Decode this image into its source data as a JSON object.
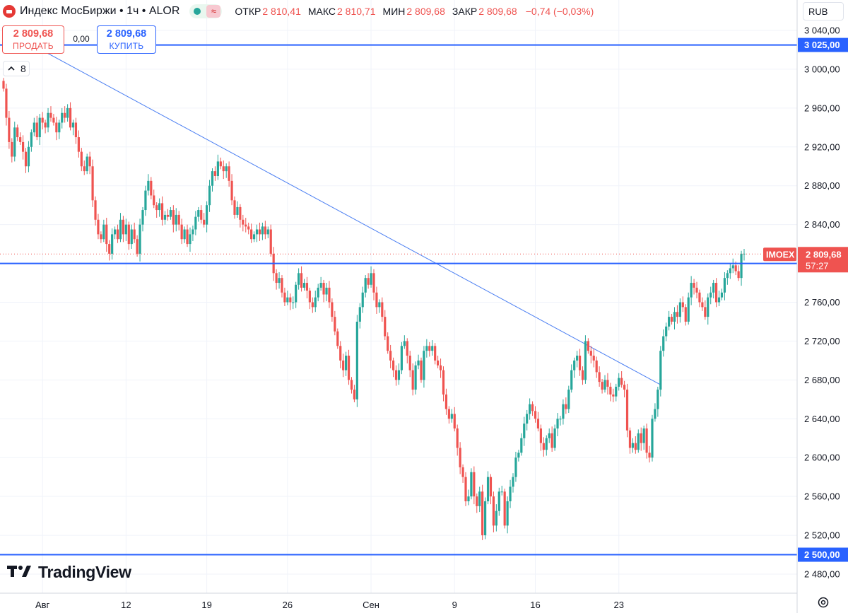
{
  "header": {
    "symbol_name": "Индекс МосБиржи",
    "sep1": "•",
    "interval": "1ч",
    "sep2": "•",
    "broker": "ALOR",
    "wave_glyph": "≈",
    "ohlc": [
      {
        "key": "ОТКР",
        "value": "2 810,41"
      },
      {
        "key": "МАКС",
        "value": "2 810,71"
      },
      {
        "key": "МИН",
        "value": "2 809,68"
      },
      {
        "key": "ЗАКР",
        "value": "2 809,68"
      }
    ],
    "change": "−0,74 (−0,03%)"
  },
  "trade": {
    "sell_price": "2 809,68",
    "sell_label": "ПРОДАТЬ",
    "spread": "0,00",
    "buy_price": "2 809,68",
    "buy_label": "КУПИТЬ"
  },
  "indicators_collapsed": {
    "count": "8"
  },
  "currency": "RUB",
  "logo_text": "TradingView",
  "colors": {
    "up": "#26a69a",
    "down": "#ef5350",
    "level": "#2962ff",
    "trend": "#4a7ef2"
  },
  "chart_data": {
    "type": "candlestick",
    "symbol": "IMOEX",
    "timeframe": "1h",
    "ylim": [
      2460,
      3060
    ],
    "y_ticks": [
      "3 040,00",
      "3 000,00",
      "2 960,00",
      "2 920,00",
      "2 880,00",
      "2 840,00",
      "2 760,00",
      "2 720,00",
      "2 680,00",
      "2 640,00",
      "2 600,00",
      "2 560,00",
      "2 520,00",
      "2 480,00"
    ],
    "y_tick_values": [
      3040,
      3000,
      2960,
      2920,
      2880,
      2840,
      2760,
      2720,
      2680,
      2640,
      2600,
      2560,
      2520,
      2480
    ],
    "x_ticks": [
      "Авг",
      "12",
      "19",
      "26",
      "Сен",
      "9",
      "16",
      "23"
    ],
    "x_tick_index": [
      14,
      44,
      73,
      102,
      132,
      162,
      191,
      221
    ],
    "horizontal_levels": [
      {
        "value": 3025,
        "label": "3 025,00"
      },
      {
        "value": 2800,
        "label": "2 800,00"
      },
      {
        "value": 2500,
        "label": "2 500,00"
      }
    ],
    "trendline": {
      "start": {
        "index": 0,
        "value": 3041
      },
      "end": {
        "index": 236,
        "value": 2675
      }
    },
    "last_price": {
      "value": 2809.68,
      "label": "2 809,68",
      "tag": "IMOEX",
      "countdown": "57:27"
    },
    "closes": [
      2980,
      2950,
      2925,
      2910,
      2940,
      2930,
      2925,
      2915,
      2900,
      2920,
      2935,
      2945,
      2930,
      2950,
      2945,
      2940,
      2955,
      2950,
      2945,
      2935,
      2945,
      2955,
      2950,
      2960,
      2940,
      2945,
      2930,
      2915,
      2900,
      2895,
      2910,
      2900,
      2865,
      2845,
      2830,
      2825,
      2840,
      2820,
      2810,
      2830,
      2835,
      2825,
      2845,
      2830,
      2840,
      2820,
      2835,
      2825,
      2810,
      2840,
      2855,
      2875,
      2885,
      2870,
      2860,
      2855,
      2862,
      2845,
      2850,
      2848,
      2855,
      2840,
      2850,
      2840,
      2825,
      2835,
      2820,
      2830,
      2835,
      2848,
      2855,
      2845,
      2840,
      2860,
      2880,
      2895,
      2890,
      2905,
      2900,
      2895,
      2900,
      2885,
      2865,
      2850,
      2858,
      2845,
      2840,
      2838,
      2835,
      2825,
      2830,
      2835,
      2830,
      2838,
      2830,
      2835,
      2810,
      2790,
      2780,
      2785,
      2770,
      2760,
      2765,
      2760,
      2760,
      2778,
      2790,
      2775,
      2780,
      2772,
      2760,
      2755,
      2765,
      2775,
      2780,
      2768,
      2775,
      2760,
      2745,
      2730,
      2715,
      2700,
      2690,
      2705,
      2680,
      2670,
      2660,
      2740,
      2755,
      2770,
      2785,
      2778,
      2790,
      2770,
      2755,
      2760,
      2745,
      2725,
      2710,
      2700,
      2690,
      2680,
      2690,
      2715,
      2720,
      2705,
      2690,
      2670,
      2695,
      2700,
      2680,
      2710,
      2715,
      2710,
      2715,
      2700,
      2695,
      2690,
      2665,
      2650,
      2640,
      2645,
      2630,
      2610,
      2590,
      2580,
      2555,
      2560,
      2585,
      2560,
      2550,
      2565,
      2520,
      2555,
      2580,
      2560,
      2530,
      2545,
      2565,
      2565,
      2530,
      2555,
      2570,
      2580,
      2600,
      2605,
      2620,
      2635,
      2645,
      2655,
      2648,
      2640,
      2630,
      2615,
      2608,
      2620,
      2625,
      2610,
      2630,
      2640,
      2640,
      2655,
      2650,
      2670,
      2690,
      2700,
      2705,
      2690,
      2680,
      2720,
      2710,
      2705,
      2700,
      2688,
      2678,
      2670,
      2680,
      2673,
      2665,
      2663,
      2673,
      2682,
      2675,
      2670,
      2628,
      2610,
      2615,
      2608,
      2625,
      2615,
      2630,
      2605,
      2600,
      2640,
      2650,
      2670,
      2710,
      2725,
      2735,
      2745,
      2740,
      2750,
      2745,
      2760,
      2755,
      2740,
      2765,
      2780,
      2775,
      2770,
      2760,
      2755,
      2745,
      2765,
      2770,
      2780,
      2760,
      2765,
      2770,
      2785,
      2790,
      2795,
      2798,
      2792,
      2785,
      2810,
      2810
    ]
  }
}
